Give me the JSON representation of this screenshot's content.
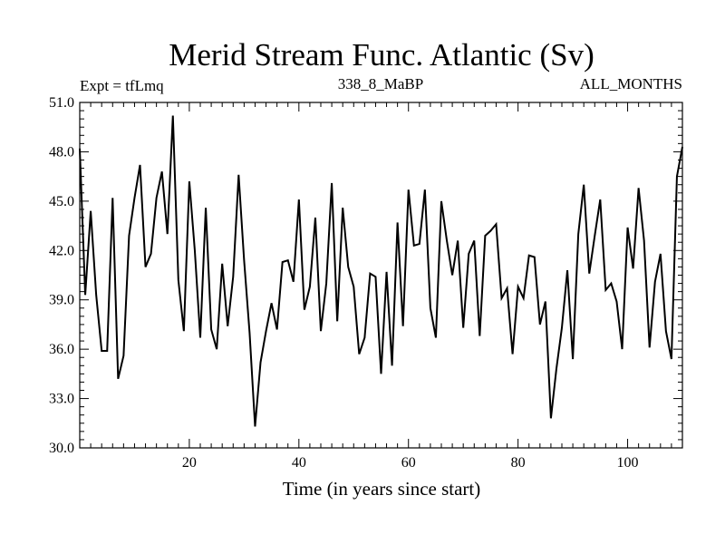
{
  "chart_data": {
    "type": "line",
    "title": "Merid Stream Func. Atlantic (Sv)",
    "subtitle_left": "Expt = tfLmq",
    "subtitle_center": "338_8_MaBP",
    "subtitle_right": "ALL_MONTHS",
    "xlabel": "Time (in years since start)",
    "ylabel": "",
    "xlim": [
      0,
      110
    ],
    "ylim": [
      30.0,
      51.0
    ],
    "x_ticks": [
      20,
      40,
      60,
      80,
      100
    ],
    "x_tick_labels": [
      "20",
      "40",
      "60",
      "80",
      "100"
    ],
    "y_ticks": [
      30.0,
      33.0,
      36.0,
      39.0,
      42.0,
      45.0,
      48.0,
      51.0
    ],
    "y_tick_labels": [
      "30.0",
      "33.0",
      "36.0",
      "39.0",
      "42.0",
      "45.0",
      "48.0",
      "51.0"
    ],
    "grid": false,
    "series": [
      {
        "name": "Merid Stream Func. Atlantic",
        "color": "#000000",
        "x": [
          0,
          1,
          2,
          3,
          4,
          5,
          6,
          7,
          8,
          9,
          10,
          11,
          12,
          13,
          14,
          15,
          16,
          17,
          18,
          19,
          20,
          21,
          22,
          23,
          24,
          25,
          26,
          27,
          28,
          29,
          30,
          31,
          32,
          33,
          34,
          35,
          36,
          37,
          38,
          39,
          40,
          41,
          42,
          43,
          44,
          45,
          46,
          47,
          48,
          49,
          50,
          51,
          52,
          53,
          54,
          55,
          56,
          57,
          58,
          59,
          60,
          61,
          62,
          63,
          64,
          65,
          66,
          67,
          68,
          69,
          70,
          71,
          72,
          73,
          74,
          75,
          76,
          77,
          78,
          79,
          80,
          81,
          82,
          83,
          84,
          85,
          86,
          87,
          88,
          89,
          90,
          91,
          92,
          93,
          94,
          95,
          96,
          97,
          98,
          99,
          100,
          101,
          102,
          103,
          104,
          105,
          106,
          107,
          108,
          109,
          110
        ],
        "values": [
          48.2,
          39.3,
          44.4,
          39.3,
          35.9,
          35.9,
          45.2,
          34.2,
          35.6,
          42.9,
          45.2,
          47.2,
          41.0,
          41.8,
          45.2,
          46.8,
          43.0,
          50.2,
          40.2,
          37.1,
          46.2,
          42.0,
          36.7,
          44.6,
          37.2,
          36.0,
          41.2,
          37.4,
          40.4,
          46.6,
          41.4,
          37.0,
          31.3,
          35.2,
          37.1,
          38.8,
          37.2,
          41.3,
          41.4,
          40.1,
          45.1,
          38.4,
          39.8,
          44.0,
          37.1,
          40.0,
          46.1,
          37.7,
          44.6,
          41.0,
          39.8,
          35.7,
          36.7,
          40.6,
          40.4,
          34.5,
          40.7,
          35.0,
          43.7,
          37.4,
          45.7,
          42.3,
          42.4,
          45.7,
          38.5,
          36.7,
          45.0,
          42.6,
          40.5,
          42.6,
          37.3,
          41.8,
          42.6,
          36.8,
          42.9,
          43.2,
          43.6,
          39.1,
          39.7,
          35.7,
          39.8,
          39.1,
          41.7,
          41.6,
          37.5,
          38.9,
          31.8,
          34.8,
          37.3,
          40.8,
          35.4,
          43.0,
          46.0,
          40.6,
          42.9,
          45.1,
          39.6,
          40.0,
          38.9,
          36.0,
          43.4,
          40.9,
          45.8,
          42.6,
          36.1,
          40.1,
          41.8,
          37.1,
          35.4,
          46.5,
          48.3
        ]
      }
    ]
  }
}
